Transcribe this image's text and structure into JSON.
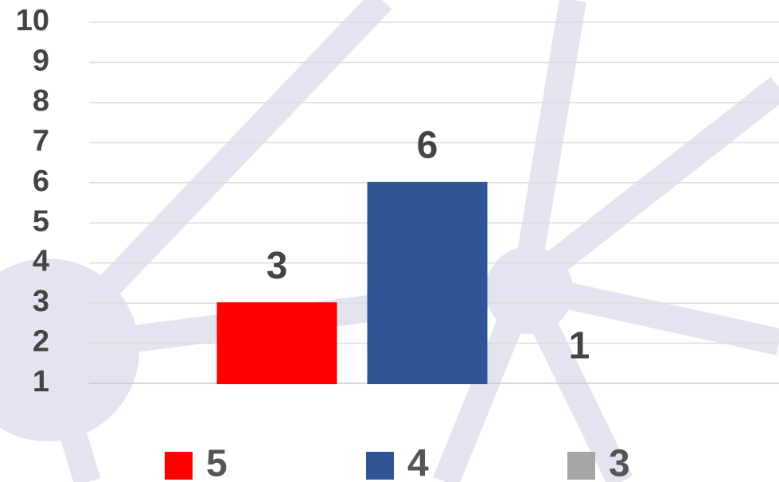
{
  "chart_data": {
    "type": "bar",
    "series": [
      {
        "name": "5",
        "color": "#ff0000",
        "values": [
          3
        ]
      },
      {
        "name": "4",
        "color": "#2f5597",
        "values": [
          6
        ]
      },
      {
        "name": "3",
        "color": "#a6a6a6",
        "values": [
          1
        ]
      }
    ],
    "ylim": [
      1,
      10
    ],
    "yticks": [
      1,
      2,
      3,
      4,
      5,
      6,
      7,
      8,
      9,
      10
    ],
    "grid": true,
    "legend": "bottom"
  }
}
